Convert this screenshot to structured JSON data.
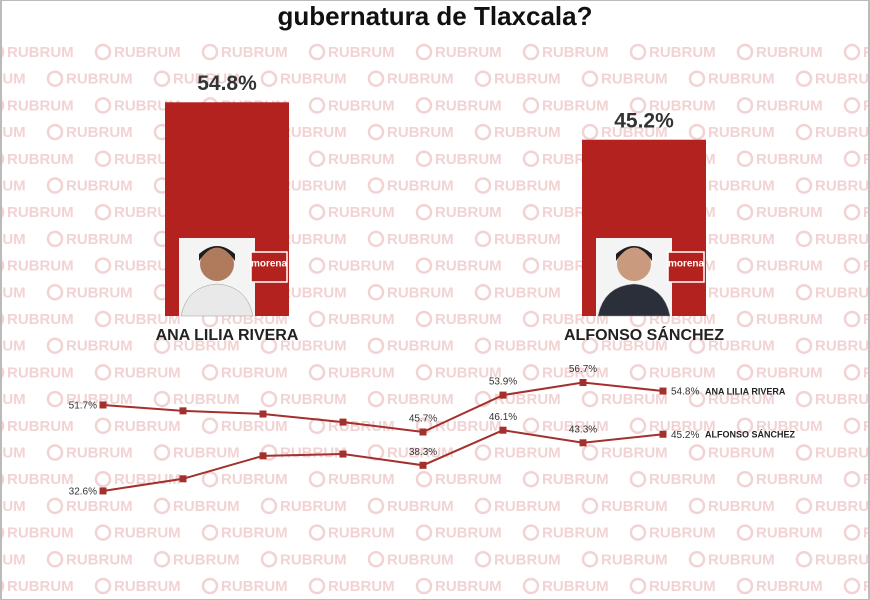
{
  "title": "gubernatura de Tlaxcala?",
  "watermark": "RUBRUM",
  "logo_text": "morena",
  "chart_data": [
    {
      "type": "bar",
      "categories": [
        "ANA LILIA RIVERA",
        "ALFONSO SÁNCHEZ"
      ],
      "values": [
        54.8,
        45.2
      ],
      "value_labels": [
        "54.8%",
        "45.2%"
      ],
      "color": "#b3221e"
    },
    {
      "type": "line",
      "categories": [
        null,
        null,
        null,
        null,
        null,
        null,
        null,
        null
      ],
      "series": [
        {
          "name": "ANA LILIA RIVERA",
          "color": "#a3302c",
          "values": [
            51.7,
            50.4,
            49.7,
            47.9,
            45.7,
            53.9,
            56.7,
            54.8
          ],
          "value_labels": [
            "51.7%",
            null,
            null,
            null,
            "45.7%",
            "53.9%",
            "56.7%",
            "54.8%"
          ]
        },
        {
          "name": "ALFONSO SÁNCHEZ",
          "color": "#a3302c",
          "values": [
            32.6,
            35.3,
            40.4,
            40.8,
            38.3,
            46.1,
            43.3,
            45.2
          ],
          "value_labels": [
            "32.6%",
            null,
            null,
            null,
            "38.3%",
            "46.1%",
            "43.3%",
            "45.2%"
          ]
        }
      ]
    }
  ]
}
